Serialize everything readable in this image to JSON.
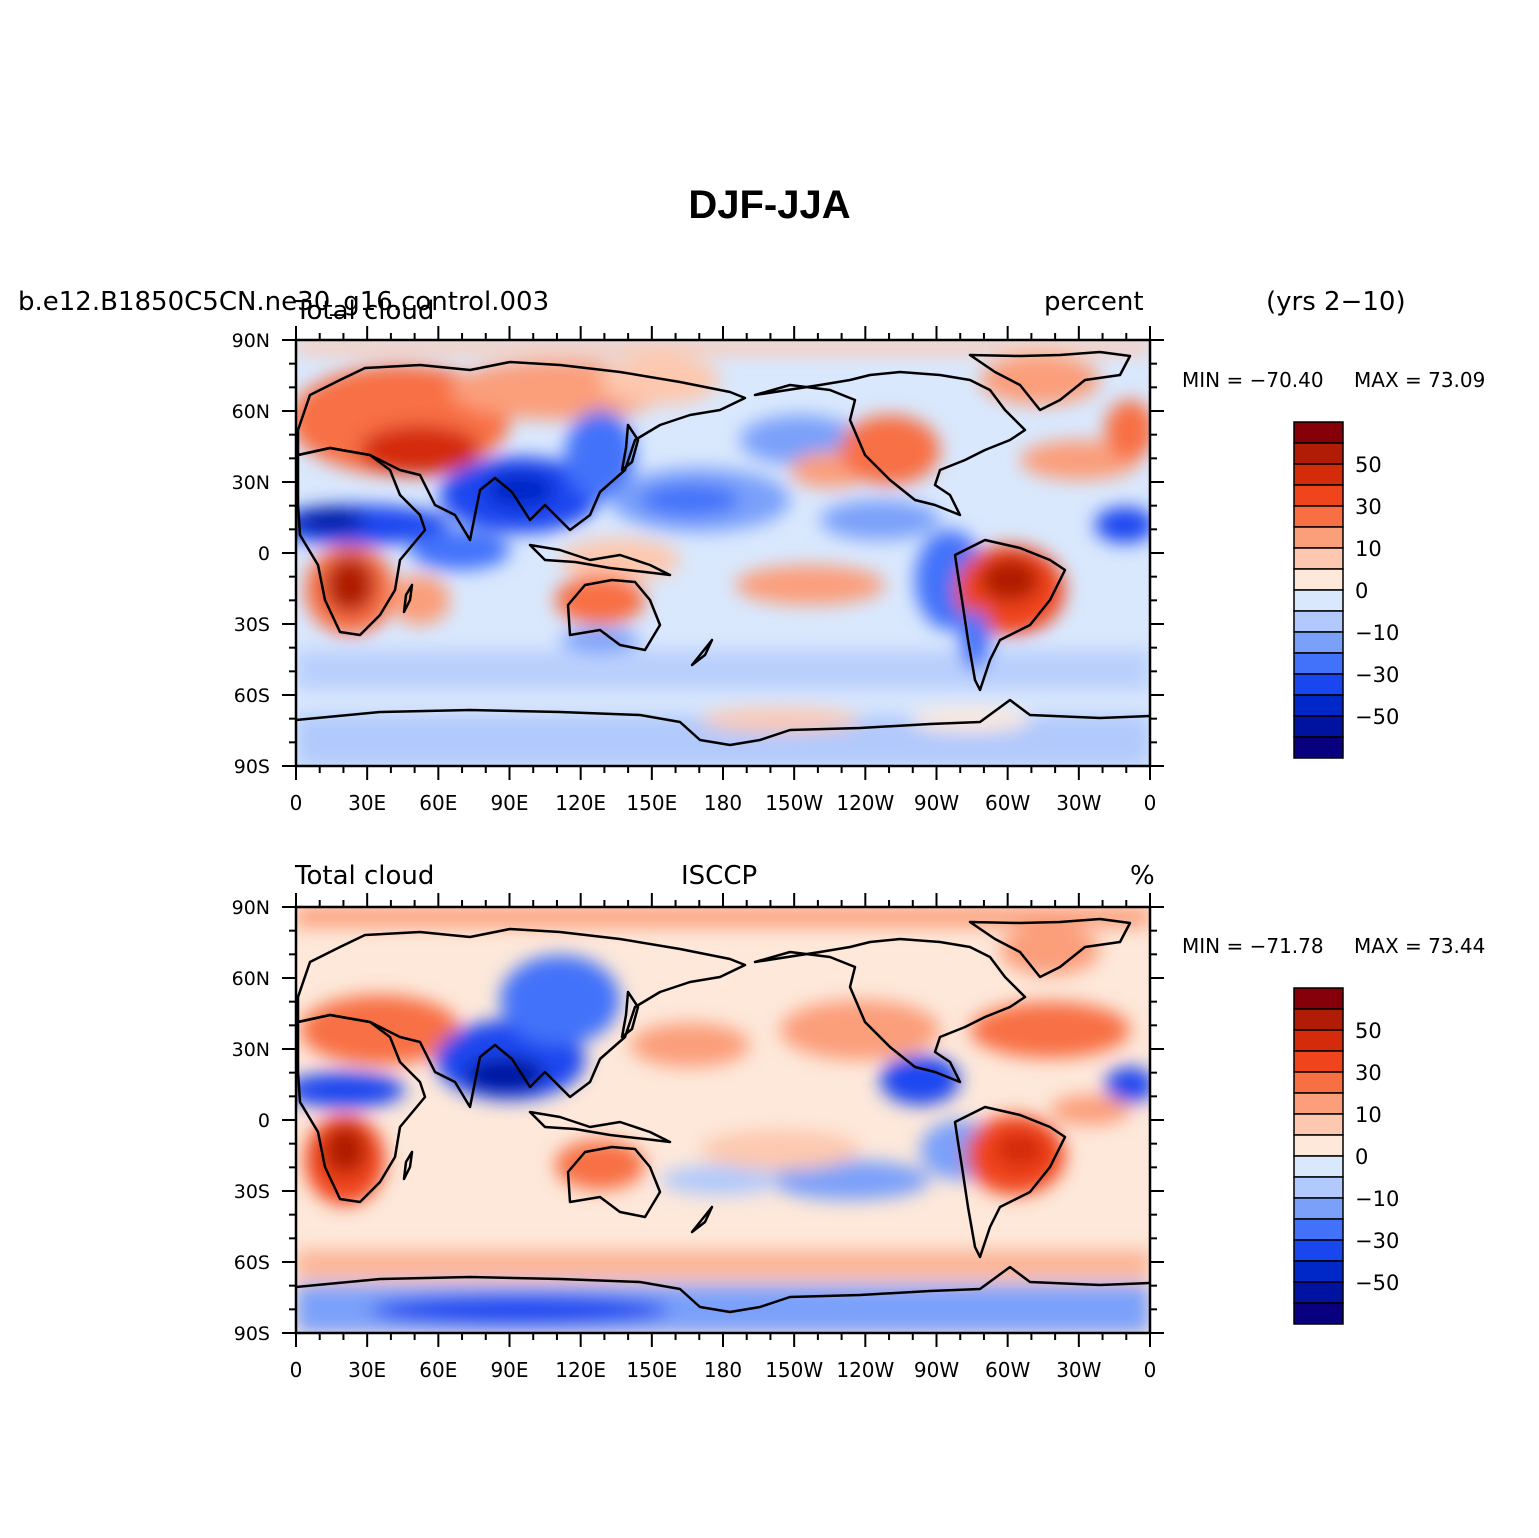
{
  "title": "DJF-JJA",
  "colors": {
    "scale": [
      "#08007f",
      "#0013a0",
      "#0028c8",
      "#1a46f0",
      "#4372fa",
      "#7aa0fa",
      "#b1c9fc",
      "#d9e8fd",
      "#fde8da",
      "#fdc8af",
      "#fb9e7a",
      "#f86f44",
      "#f0441c",
      "#d42b0b",
      "#b01c06",
      "#850008"
    ],
    "background": "#ffffff"
  },
  "colorbar_labels": [
    "50",
    "30",
    "10",
    "0",
    "−10",
    "−30",
    "−50"
  ],
  "panels": [
    {
      "left_label": "b.e12.B1850C5CN.ne30_g16.control.003",
      "left_label_overlap": "Total cloud",
      "center_label": "",
      "right_label": "percent",
      "side_label": "(yrs 2−10)",
      "min_text": "MIN = −70.40",
      "max_text": "MAX =   73.09"
    },
    {
      "left_label": "Total cloud",
      "center_label": "ISCCP",
      "right_label": "%",
      "side_label": "",
      "min_text": "MIN = −71.78",
      "max_text": "MAX =   73.44"
    }
  ],
  "axes": {
    "lon_ticks": [
      "0",
      "30E",
      "60E",
      "90E",
      "120E",
      "150E",
      "180",
      "150W",
      "120W",
      "90W",
      "60W",
      "30W",
      "0"
    ],
    "lat_ticks": [
      "90N",
      "60N",
      "30N",
      "0",
      "30S",
      "60S",
      "90S"
    ]
  }
}
